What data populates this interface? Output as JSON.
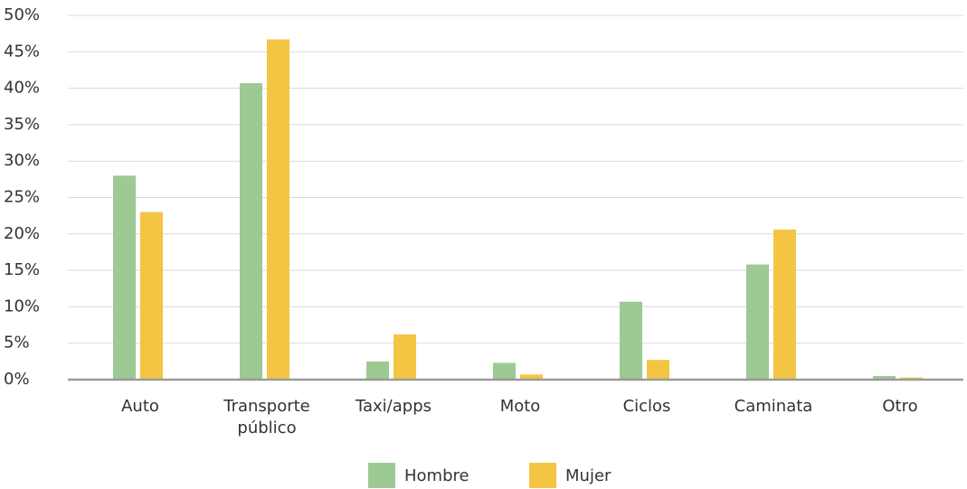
{
  "chart_data": {
    "type": "bar",
    "categories": [
      "Auto",
      "Transporte público",
      "Taxi/apps",
      "Moto",
      "Ciclos",
      "Caminata",
      "Otro"
    ],
    "series": [
      {
        "name": "Hombre",
        "color": "#9dc993",
        "values": [
          28,
          40.7,
          2.5,
          2.3,
          10.7,
          15.8,
          0.5
        ]
      },
      {
        "name": "Mujer",
        "color": "#f4c542",
        "values": [
          23,
          46.7,
          6.2,
          0.7,
          2.7,
          20.6,
          0.3
        ]
      }
    ],
    "ylim": [
      0,
      50
    ],
    "yticks": [
      {
        "value": 0,
        "label": "0%"
      },
      {
        "value": 5,
        "label": "5%"
      },
      {
        "value": 10,
        "label": "10%"
      },
      {
        "value": 15,
        "label": "15%"
      },
      {
        "value": 20,
        "label": "20%"
      },
      {
        "value": 25,
        "label": "25%"
      },
      {
        "value": 30,
        "label": "30%"
      },
      {
        "value": 35,
        "label": "35%"
      },
      {
        "value": 40,
        "label": "40%"
      },
      {
        "value": 45,
        "label": "45%"
      },
      {
        "value": 50,
        "label": "50%"
      }
    ],
    "grid": true,
    "legend": "bottom"
  }
}
